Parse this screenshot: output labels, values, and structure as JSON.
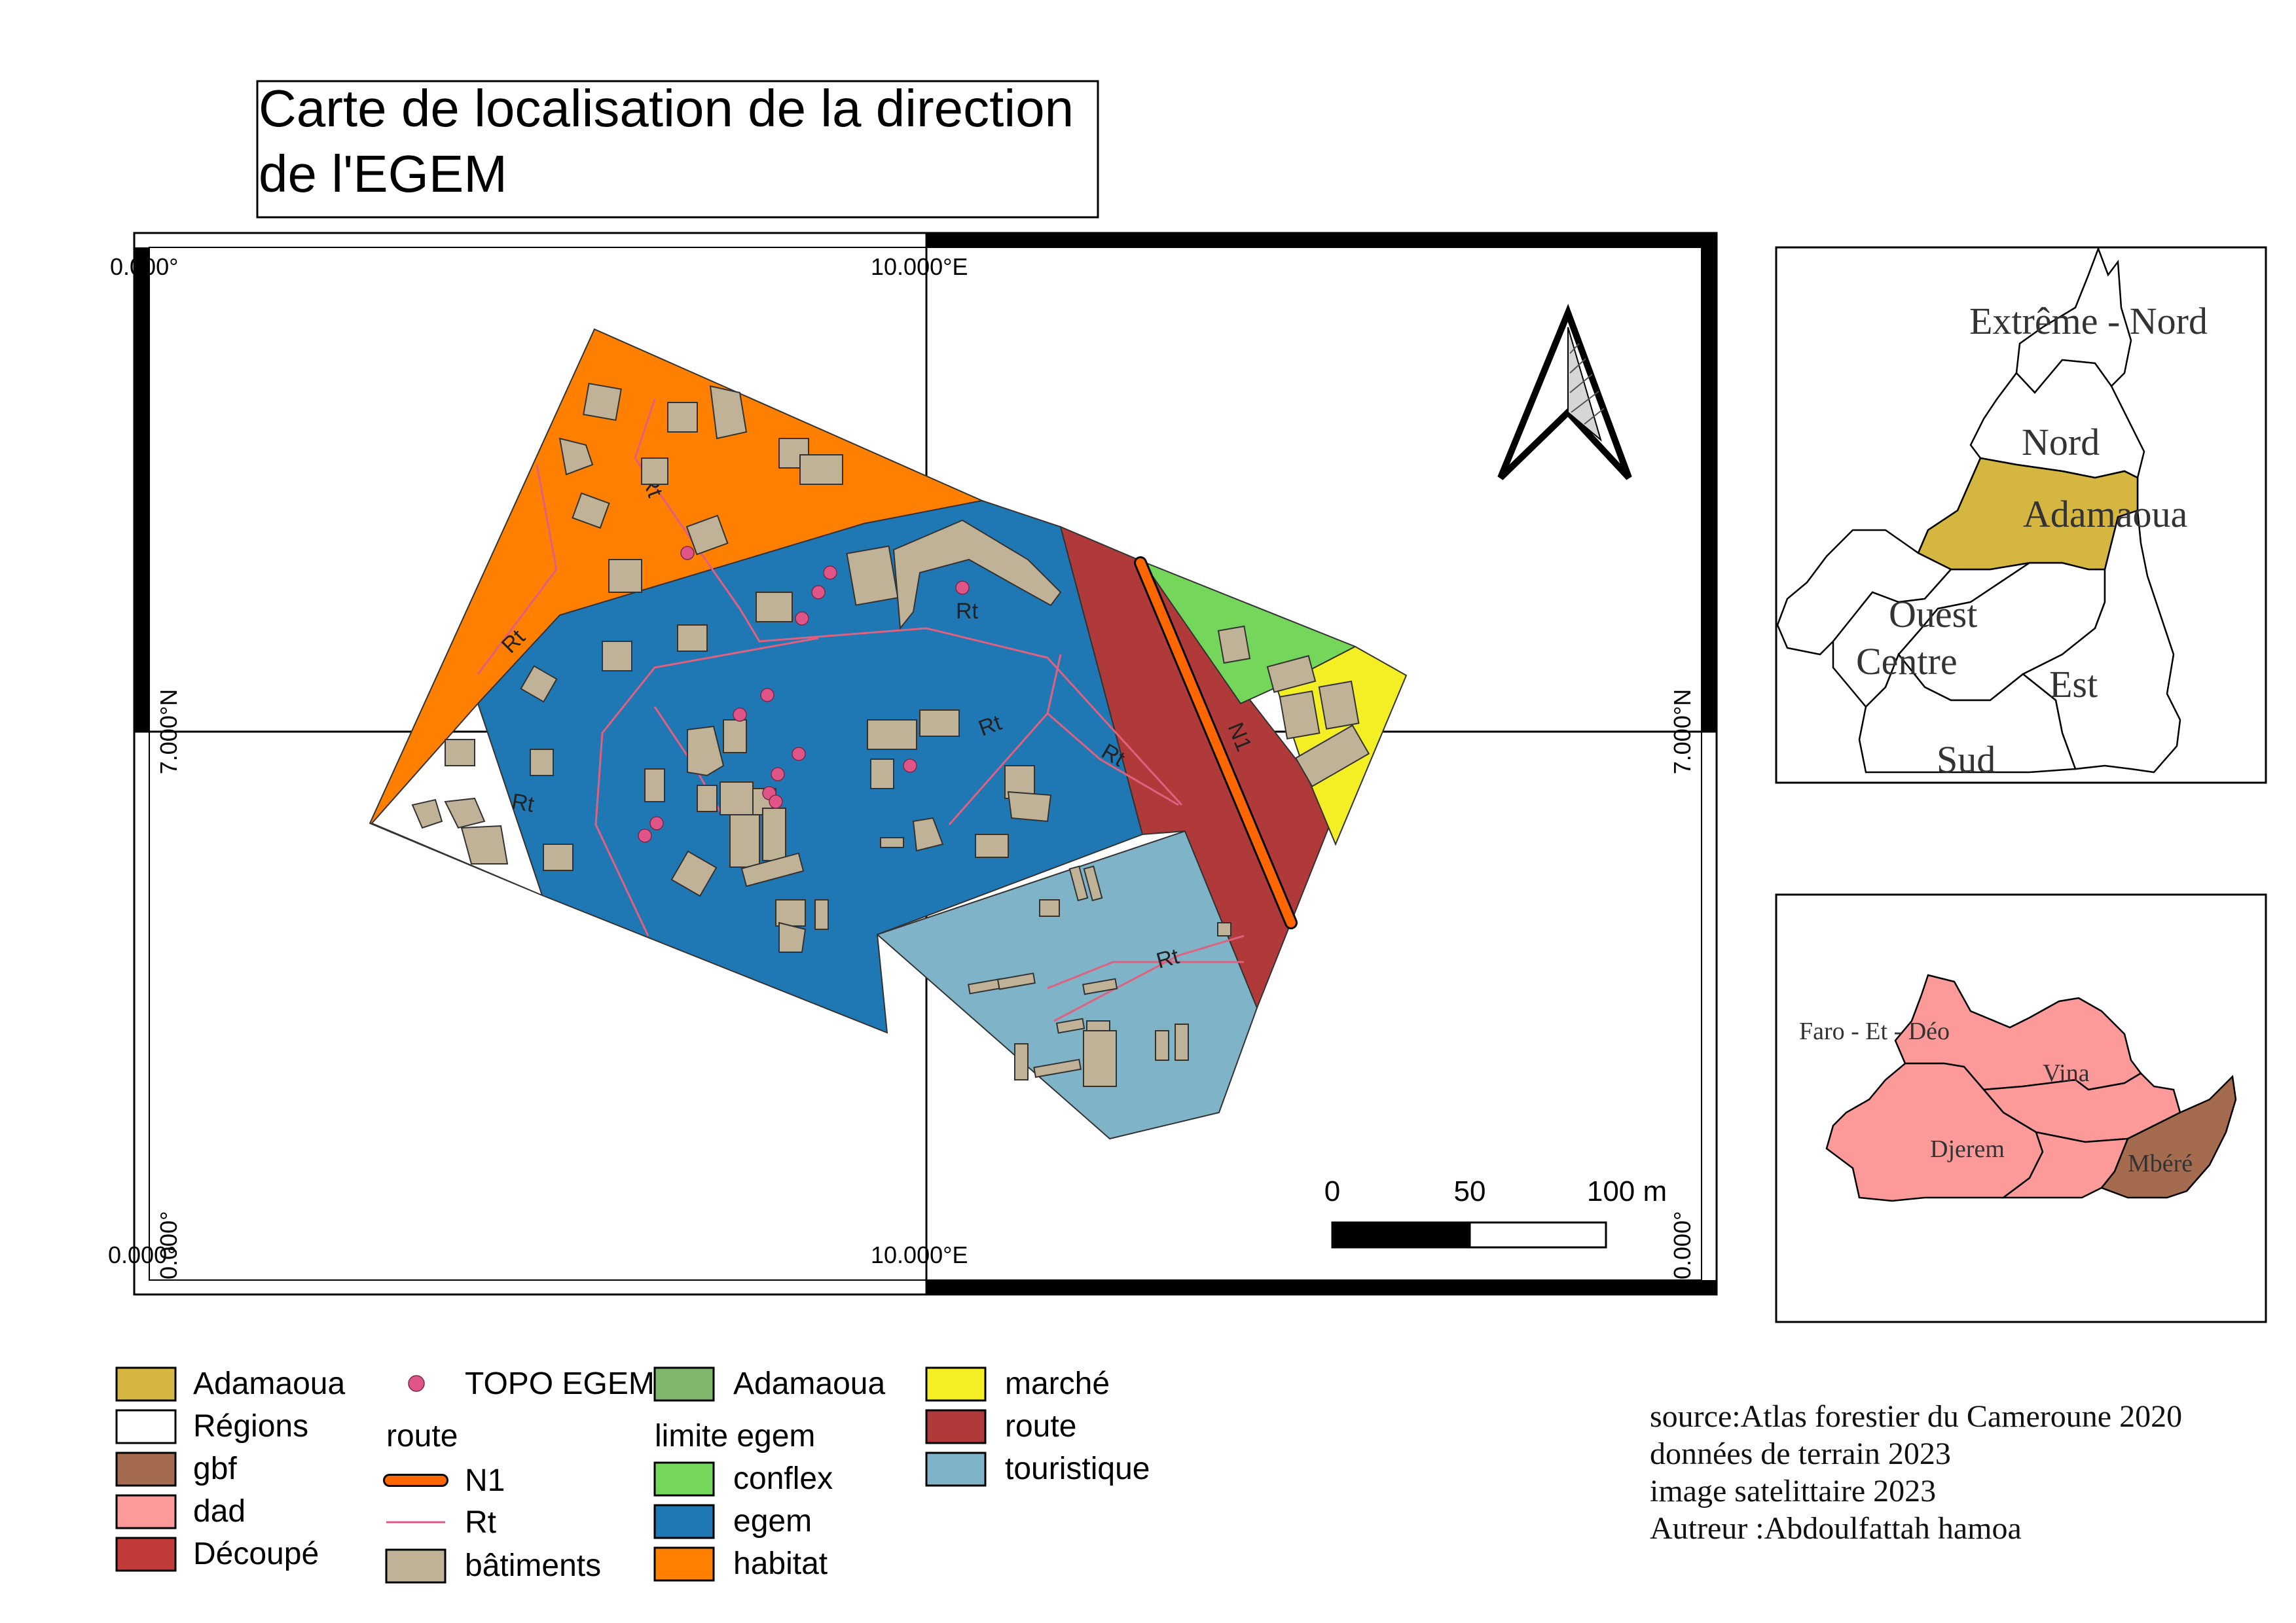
{
  "title": {
    "line1": "Carte de localisation de la direction",
    "line2": "de l'EGEM"
  },
  "grid_labels": {
    "top_left": "0.000°",
    "top_center": "10.000°E",
    "left_middle": "7.000°N",
    "right_middle": "7.000°N",
    "bottom_left": "0.000°",
    "bottom_left_vertical": "0.000°",
    "bottom_center": "10.000°E",
    "bottom_right_vertical": "0.000°"
  },
  "road_labels": {
    "rt": "Rt",
    "n1": "N1"
  },
  "scale_bar": {
    "tick_0": "0",
    "tick_50": "50",
    "tick_100": "100 m"
  },
  "inset_cameroon": {
    "regions": {
      "extreme_nord": "Extrême - Nord",
      "nord": "Nord",
      "adamaoua": "Adamaoua",
      "ouest": "Ouest",
      "centre": "Centre",
      "est": "Est",
      "sud": "Sud"
    },
    "colors": {
      "highlight": "#d4b640",
      "fill": "#ffffff"
    }
  },
  "inset_adamaoua": {
    "departments": {
      "faro": "Faro - Et - Déo",
      "vina": "Vina",
      "djerem": "Djerem",
      "mbere": "Mbéré"
    },
    "colors": {
      "dad": "#fb9a99",
      "gbf": "#a46b4f"
    }
  },
  "legend": {
    "col1": [
      {
        "label": "Adamaoua",
        "color": "#d4b640"
      },
      {
        "label": "Régions",
        "color": "#ffffff"
      },
      {
        "label": "gbf",
        "color": "#a46b4f"
      },
      {
        "label": "dad",
        "color": "#fb9a99"
      },
      {
        "label": "Découpé",
        "color": "#c23b3b"
      }
    ],
    "col2": {
      "topo_label": "TOPO EGEM",
      "topo_color": "#e05587",
      "group_title": "route",
      "n1_label": "N1",
      "n1_color": "#ff6600",
      "rt_label": "Rt",
      "rt_color": "#e05587",
      "batiments_label": "bâtiments",
      "batiments_color": "#bfb297"
    },
    "col3": {
      "adamaoua_label": "Adamaoua",
      "adamaoua_color": "#80b56e",
      "group_title": "limite egem",
      "items": [
        {
          "label": "conflex",
          "color": "#74d65a"
        },
        {
          "label": "egem",
          "color": "#1f78b4"
        },
        {
          "label": "habitat",
          "color": "#ff7f00"
        }
      ]
    },
    "col4": [
      {
        "label": "marché",
        "color": "#f3ef24"
      },
      {
        "label": "route",
        "color": "#b03a3a"
      },
      {
        "label": "touristique",
        "color": "#7fb3c8"
      }
    ]
  },
  "credits": {
    "line1": "source:Atlas forestier du Cameroune 2020",
    "line2": "données de terrain 2023",
    "line3": "image satelittaire 2023",
    "line4": "Autreur :Abdoulfattah hamoa"
  }
}
